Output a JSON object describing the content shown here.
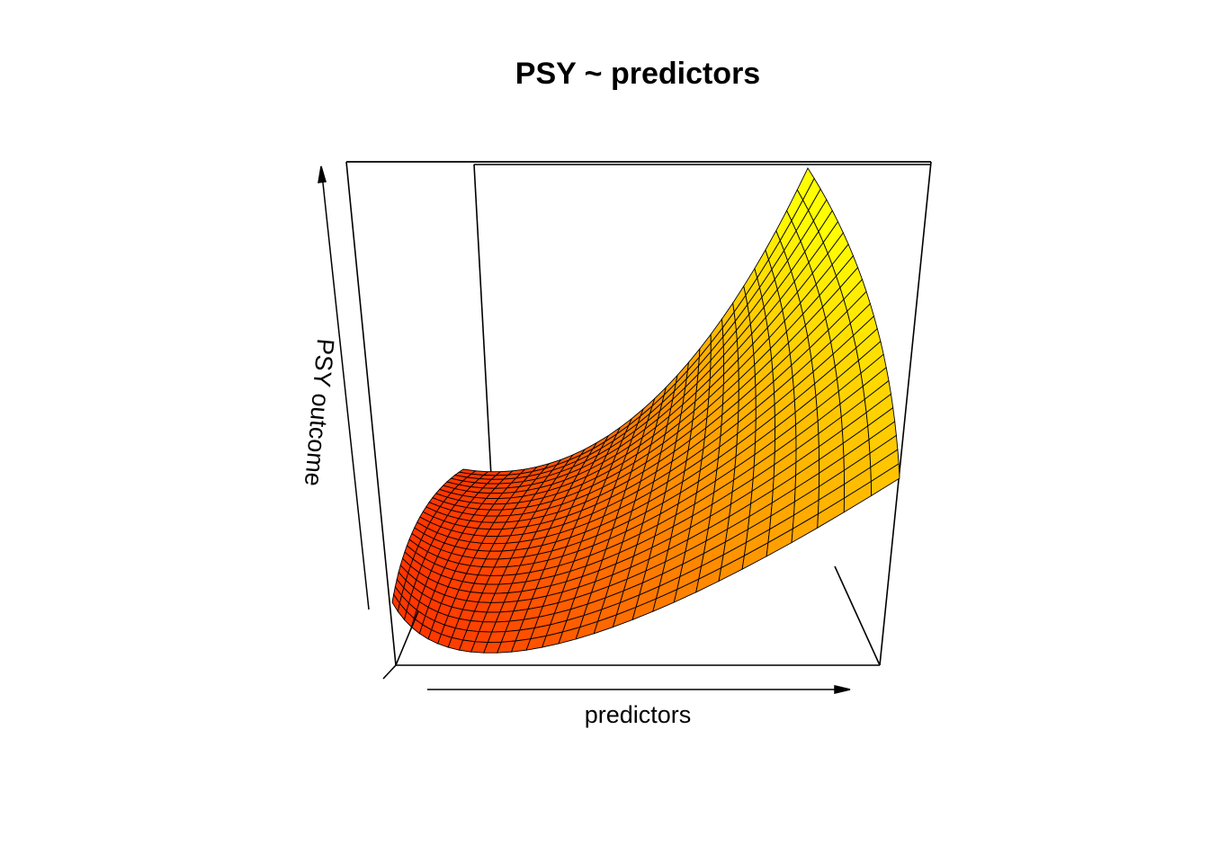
{
  "chart_data": {
    "type": "surface",
    "title": "PSY ~ predictors",
    "xlabel": "predictors",
    "ylabel": "",
    "zlabel": "PSY outcome",
    "color_low": "#ff0000",
    "color_high": "#ffff00",
    "grid_rows": 25,
    "grid_cols": 30,
    "surface_description_shown": "quadratic-like surface, low at front centre, rising to the back-right corner"
  }
}
